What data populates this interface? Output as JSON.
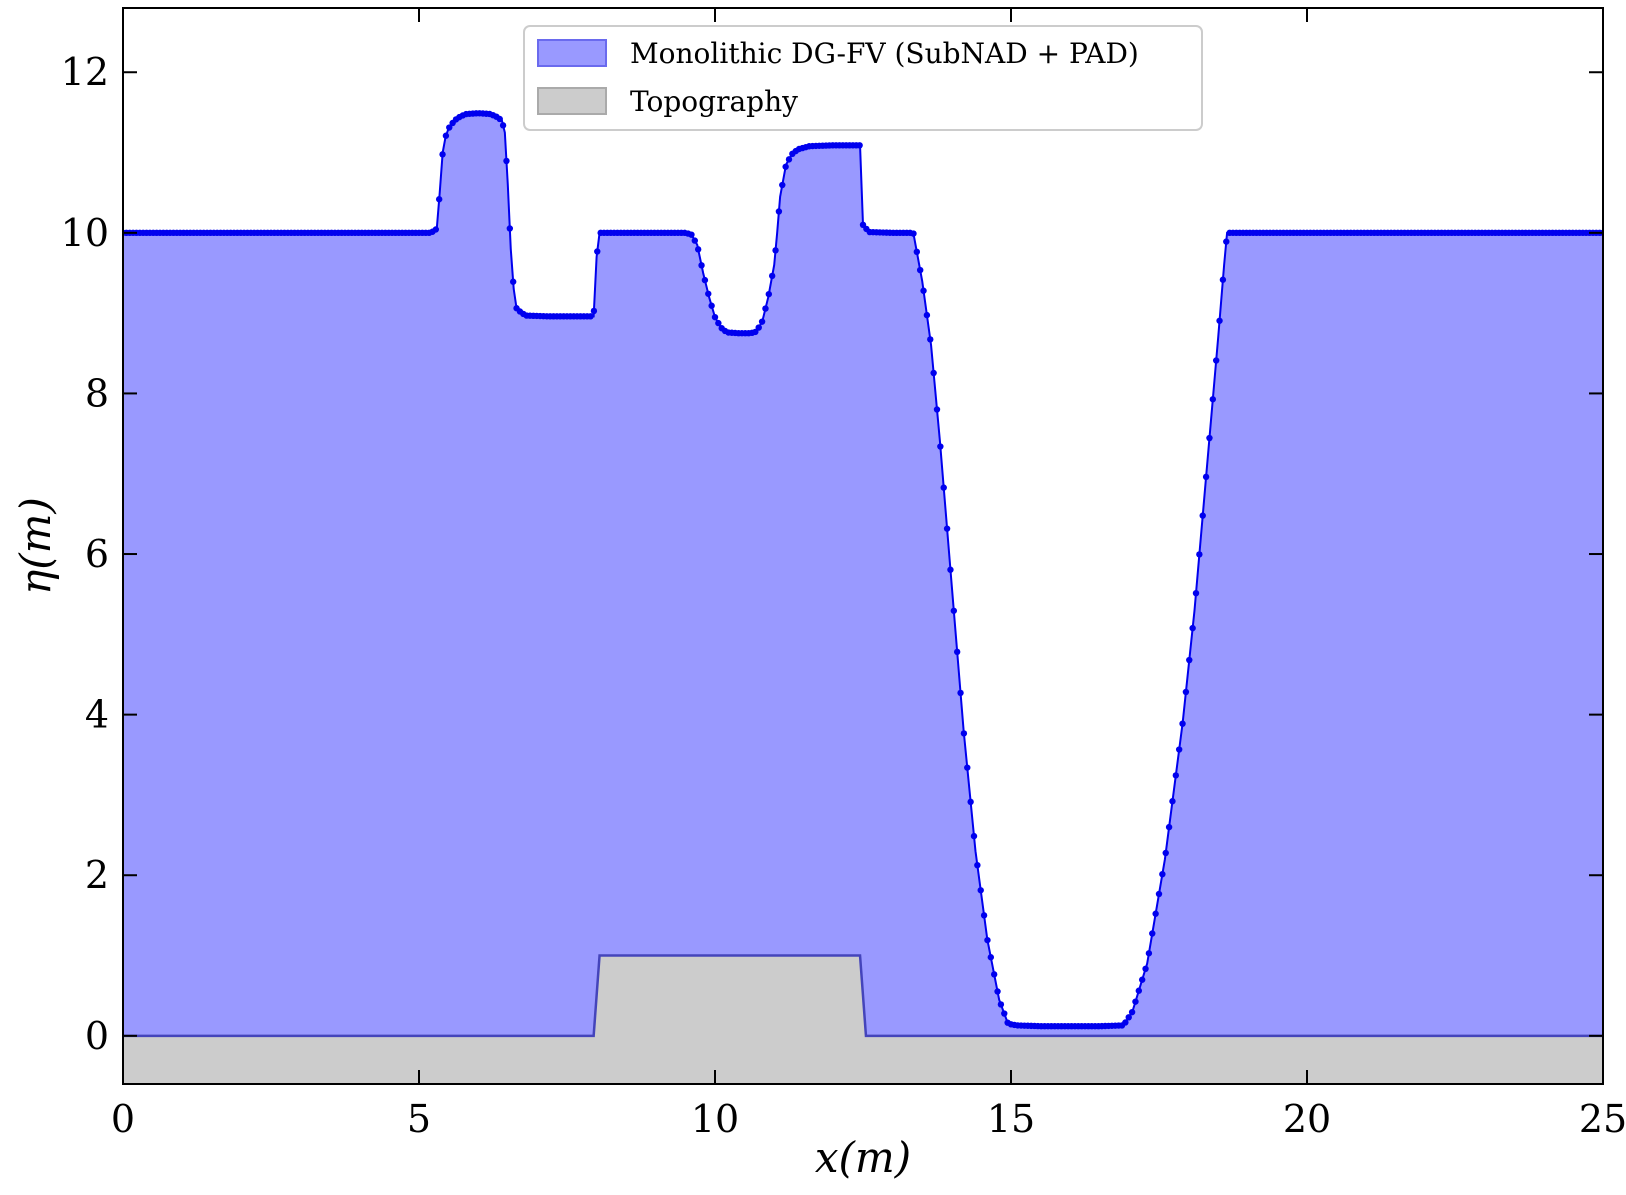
{
  "chart_data": {
    "type": "area",
    "xlabel": "x(m)",
    "ylabel": "η(m)",
    "xlim": [
      0,
      25
    ],
    "ylim": [
      -0.6,
      12.8
    ],
    "xticks": [
      0,
      5,
      10,
      15,
      20,
      25
    ],
    "yticks": [
      0,
      2,
      4,
      6,
      8,
      10,
      12
    ],
    "grid": false,
    "legend_position": "top-center",
    "colors": {
      "fill": "#9999ff",
      "line": "#0000ee",
      "marker": "#0000ee",
      "topography_fill": "#cccccc",
      "topography_line": "#4444bb"
    },
    "series": [
      {
        "name": "Monolithic DG-FV (SubNAD + PAD)",
        "kind": "filled-line-with-markers",
        "points": [
          [
            0,
            10
          ],
          [
            1,
            10
          ],
          [
            2,
            10
          ],
          [
            3,
            10
          ],
          [
            4,
            10
          ],
          [
            5,
            10
          ],
          [
            5.2,
            10
          ],
          [
            5.3,
            10.05
          ],
          [
            5.35,
            10.5
          ],
          [
            5.4,
            11.0
          ],
          [
            5.45,
            11.2
          ],
          [
            5.5,
            11.3
          ],
          [
            5.6,
            11.4
          ],
          [
            5.7,
            11.45
          ],
          [
            5.8,
            11.48
          ],
          [
            6.0,
            11.49
          ],
          [
            6.2,
            11.48
          ],
          [
            6.3,
            11.45
          ],
          [
            6.4,
            11.4
          ],
          [
            6.45,
            11.25
          ],
          [
            6.5,
            10.6
          ],
          [
            6.55,
            9.8
          ],
          [
            6.6,
            9.3
          ],
          [
            6.65,
            9.05
          ],
          [
            6.8,
            8.97
          ],
          [
            7.2,
            8.96
          ],
          [
            7.6,
            8.96
          ],
          [
            7.95,
            8.96
          ],
          [
            8.0,
            9.7
          ],
          [
            8.05,
            10.0
          ],
          [
            8.5,
            10.0
          ],
          [
            9.0,
            10.0
          ],
          [
            9.5,
            10.0
          ],
          [
            9.6,
            9.98
          ],
          [
            9.7,
            9.85
          ],
          [
            9.8,
            9.5
          ],
          [
            9.9,
            9.2
          ],
          [
            10.0,
            8.95
          ],
          [
            10.1,
            8.82
          ],
          [
            10.2,
            8.76
          ],
          [
            10.4,
            8.75
          ],
          [
            10.6,
            8.75
          ],
          [
            10.7,
            8.77
          ],
          [
            10.8,
            8.9
          ],
          [
            10.9,
            9.2
          ],
          [
            11.0,
            9.6
          ],
          [
            11.05,
            10.0
          ],
          [
            11.1,
            10.45
          ],
          [
            11.2,
            10.85
          ],
          [
            11.3,
            10.98
          ],
          [
            11.4,
            11.04
          ],
          [
            11.6,
            11.08
          ],
          [
            12.0,
            11.09
          ],
          [
            12.45,
            11.09
          ],
          [
            12.5,
            10.1
          ],
          [
            12.6,
            10.01
          ],
          [
            13.0,
            10.0
          ],
          [
            13.35,
            10.0
          ],
          [
            13.5,
            9.4
          ],
          [
            13.65,
            8.6
          ],
          [
            13.8,
            7.4
          ],
          [
            14.0,
            5.6
          ],
          [
            14.2,
            3.8
          ],
          [
            14.4,
            2.3
          ],
          [
            14.6,
            1.2
          ],
          [
            14.8,
            0.45
          ],
          [
            14.95,
            0.15
          ],
          [
            15.1,
            0.13
          ],
          [
            15.5,
            0.12
          ],
          [
            16.0,
            0.12
          ],
          [
            16.5,
            0.12
          ],
          [
            16.9,
            0.13
          ],
          [
            17.05,
            0.3
          ],
          [
            17.3,
            0.9
          ],
          [
            17.6,
            2.2
          ],
          [
            17.9,
            3.9
          ],
          [
            18.1,
            5.3
          ],
          [
            18.3,
            7.0
          ],
          [
            18.5,
            8.7
          ],
          [
            18.6,
            9.6
          ],
          [
            18.65,
            10.0
          ],
          [
            19.0,
            10.0
          ],
          [
            20.0,
            10.0
          ],
          [
            21.0,
            10.0
          ],
          [
            22.0,
            10.0
          ],
          [
            23.0,
            10.0
          ],
          [
            24.0,
            10.0
          ],
          [
            25.0,
            10.0
          ]
        ]
      },
      {
        "name": "Topography",
        "kind": "filled-region",
        "points": [
          [
            0,
            0
          ],
          [
            7.95,
            0
          ],
          [
            8.05,
            1.0
          ],
          [
            12.45,
            1.0
          ],
          [
            12.55,
            0
          ],
          [
            25,
            0
          ]
        ]
      }
    ]
  }
}
